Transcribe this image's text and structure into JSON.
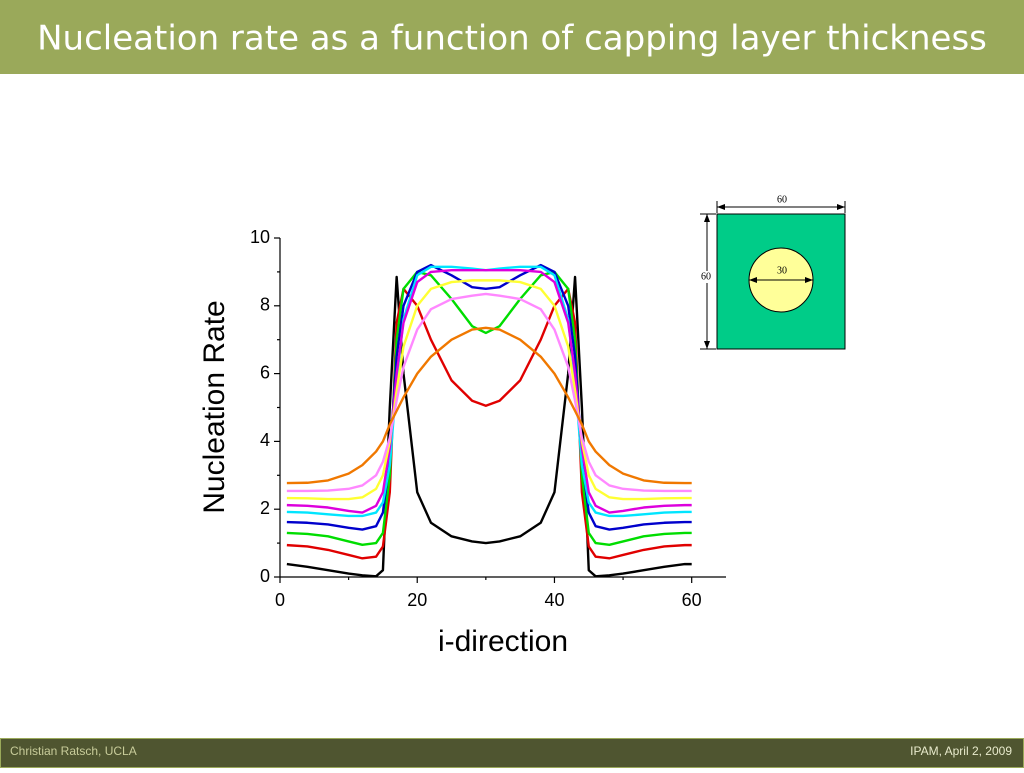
{
  "header": {
    "title": "Nucleation rate as a function of capping layer thickness"
  },
  "footer": {
    "left": "Christian Ratsch, UCLA",
    "right": "IPAM, April 2, 2009"
  },
  "inset": {
    "width_label": "60",
    "height_label": "60",
    "diameter_label": "30"
  },
  "chart_data": {
    "type": "line",
    "x_label": "i-direction",
    "y_label": "Nucleation Rate",
    "x": [
      1,
      4,
      7,
      10,
      12,
      14,
      15,
      16,
      17,
      18,
      20,
      22,
      25,
      28,
      30,
      32,
      35,
      38,
      40,
      42,
      43,
      44,
      45,
      46,
      48,
      50,
      53,
      56,
      59,
      60
    ],
    "xlim": [
      0,
      65
    ],
    "xticks": [
      0,
      20,
      40,
      60
    ],
    "xticks_minor": [
      10,
      30,
      50
    ],
    "ylim": [
      0,
      10
    ],
    "yticks": [
      0,
      2,
      4,
      6,
      8,
      10
    ],
    "yticks_minor": [
      1,
      3,
      5,
      7,
      9
    ],
    "series": [
      {
        "color": "#000000",
        "values": [
          0.38,
          0.3,
          0.2,
          0.1,
          0.05,
          0.02,
          0.2,
          5.0,
          8.85,
          6.0,
          2.5,
          1.6,
          1.2,
          1.05,
          1.0,
          1.05,
          1.2,
          1.6,
          2.5,
          6.0,
          8.85,
          5.0,
          0.2,
          0.02,
          0.05,
          0.1,
          0.2,
          0.3,
          0.38,
          0.38
        ]
      },
      {
        "color": "#e00000",
        "values": [
          0.94,
          0.9,
          0.8,
          0.65,
          0.55,
          0.6,
          0.9,
          2.5,
          7.5,
          8.5,
          8.0,
          7.0,
          5.8,
          5.2,
          5.05,
          5.2,
          5.8,
          7.0,
          8.0,
          8.5,
          7.5,
          2.5,
          0.9,
          0.6,
          0.55,
          0.65,
          0.8,
          0.9,
          0.94,
          0.94
        ]
      },
      {
        "color": "#00dd00",
        "values": [
          1.3,
          1.27,
          1.2,
          1.05,
          0.95,
          1.0,
          1.3,
          3.0,
          7.0,
          8.5,
          9.0,
          8.9,
          8.2,
          7.4,
          7.2,
          7.4,
          8.2,
          8.9,
          9.0,
          8.5,
          7.0,
          3.0,
          1.3,
          1.0,
          0.95,
          1.05,
          1.2,
          1.27,
          1.3,
          1.3
        ]
      },
      {
        "color": "#0000cc",
        "values": [
          1.62,
          1.6,
          1.55,
          1.45,
          1.4,
          1.5,
          1.9,
          3.5,
          6.5,
          8.0,
          9.0,
          9.2,
          8.9,
          8.55,
          8.5,
          8.55,
          8.9,
          9.2,
          9.0,
          8.0,
          6.5,
          3.5,
          1.9,
          1.5,
          1.4,
          1.45,
          1.55,
          1.6,
          1.62,
          1.62
        ]
      },
      {
        "color": "#00e5ff",
        "values": [
          1.92,
          1.9,
          1.85,
          1.8,
          1.8,
          1.9,
          2.2,
          3.3,
          5.8,
          7.6,
          8.9,
          9.15,
          9.15,
          9.1,
          9.05,
          9.1,
          9.15,
          9.15,
          8.9,
          7.6,
          5.8,
          3.3,
          2.2,
          1.9,
          1.8,
          1.8,
          1.85,
          1.9,
          1.92,
          1.92
        ]
      },
      {
        "color": "#dd00dd",
        "values": [
          2.12,
          2.1,
          2.05,
          1.95,
          1.9,
          2.1,
          2.5,
          3.8,
          6.0,
          7.5,
          8.7,
          9.0,
          9.05,
          9.05,
          9.05,
          9.05,
          9.05,
          9.0,
          8.7,
          7.5,
          6.0,
          3.8,
          2.5,
          2.1,
          1.9,
          1.95,
          2.05,
          2.1,
          2.12,
          2.12
        ]
      },
      {
        "color": "#ffff33",
        "values": [
          2.33,
          2.32,
          2.3,
          2.3,
          2.35,
          2.6,
          3.0,
          4.0,
          5.5,
          6.8,
          8.0,
          8.5,
          8.7,
          8.75,
          8.75,
          8.75,
          8.7,
          8.5,
          8.0,
          6.8,
          5.5,
          4.0,
          3.0,
          2.6,
          2.35,
          2.3,
          2.3,
          2.32,
          2.33,
          2.33
        ]
      },
      {
        "color": "#ff88ff",
        "values": [
          2.54,
          2.54,
          2.55,
          2.6,
          2.7,
          3.0,
          3.4,
          4.1,
          5.2,
          6.2,
          7.3,
          7.9,
          8.2,
          8.3,
          8.35,
          8.3,
          8.2,
          7.9,
          7.3,
          6.2,
          5.2,
          4.1,
          3.4,
          3.0,
          2.7,
          2.6,
          2.55,
          2.54,
          2.54,
          2.54
        ]
      },
      {
        "color": "#f07800",
        "values": [
          2.77,
          2.78,
          2.85,
          3.05,
          3.3,
          3.7,
          4.0,
          4.5,
          4.9,
          5.3,
          6.0,
          6.5,
          7.0,
          7.3,
          7.35,
          7.3,
          7.0,
          6.5,
          6.0,
          5.3,
          4.9,
          4.5,
          4.0,
          3.7,
          3.3,
          3.05,
          2.85,
          2.78,
          2.77,
          2.77
        ]
      }
    ]
  }
}
